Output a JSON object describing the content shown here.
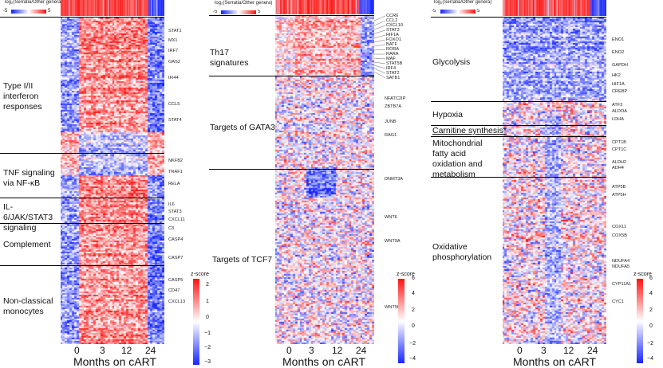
{
  "legend": {
    "title": "log₂(Serratia/Other genera)",
    "min_label": "-5",
    "max_label": "5"
  },
  "x_axis": {
    "ticks": [
      "0",
      "3",
      "12",
      "24"
    ],
    "label": "Months on cART"
  },
  "colorbar": {
    "title": "z-score"
  },
  "panels": [
    {
      "categories": [
        "Type I/II interferon responses",
        "TNF signaling via NF-κB",
        "IL-6/JAK/STAT3 signaling",
        "Complement",
        "Non-classical monocytes"
      ],
      "genes": [
        "STAT1",
        "MX1",
        "IRF7",
        "OAS2",
        "IFI44",
        "CCL5",
        "STAT4",
        "NKFB2",
        "TRAF1",
        "RELA",
        "IL6",
        "STAT3",
        "CXCL11",
        "C3",
        "CASP4",
        "CASP7",
        "CASP5",
        "CD47",
        "CXCL13"
      ],
      "colorbar_ticks": [
        "2",
        "1",
        "0",
        "−1",
        "−2",
        "−3"
      ],
      "colorbar_range": [
        -3,
        2
      ]
    },
    {
      "categories": [
        "Th17 signatures",
        "Targets of GATA3",
        "Targets of TCF7"
      ],
      "genes": [
        "CCR6",
        "CCL2",
        "CXCL10",
        "STAT3",
        "HIF1A",
        "FOXO1",
        "BATF",
        "RORA",
        "RARA",
        "MAF",
        "STAT5B",
        "IRF4",
        "STAT2",
        "SATB1",
        "NFATC2IP",
        "ZBTB7A",
        "JUNB",
        "RAG1",
        "DNMT3A",
        "WNT6",
        "WNT9A",
        "WNT5B"
      ],
      "colorbar_ticks": [
        "6",
        "4",
        "2",
        "0",
        "−2",
        "−4"
      ],
      "colorbar_range": [
        -4,
        6
      ]
    },
    {
      "categories": [
        "Glycolysis",
        "Hypoxia",
        "Carnitine synthesis*",
        "Mitochondrial fatty acid oxidation and metabolism",
        "Oxidative phosphorylation"
      ],
      "genes": [
        "ENO1",
        "ENO2",
        "GAPDH",
        "HK2",
        "HIF1A",
        "CREBP",
        "ATF3",
        "ALDOA",
        "LDHA",
        "CPT1B",
        "CPT1C",
        "ALDH2",
        "ADH4",
        "ATP5B",
        "ATP5H",
        "COX11",
        "COX5B",
        "NDUFA4",
        "NDUFA5",
        "CYP11A1",
        "CYC1"
      ],
      "colorbar_ticks": [
        "6",
        "4",
        "2",
        "0",
        "−2",
        "−4"
      ],
      "colorbar_range": [
        -4,
        6
      ]
    }
  ],
  "chart_data": [
    {
      "type": "heatmap",
      "x": [
        "0",
        "3",
        "12",
        "24"
      ],
      "xlabel": "Months on cART",
      "colorbar_label": "z-score",
      "colorbar_range": [
        -3,
        2
      ],
      "row_groups": [
        "Type I/II interferon responses",
        "TNF signaling via NF-κB",
        "IL-6/JAK/STAT3 signaling",
        "Complement",
        "Non-classical monocytes"
      ],
      "labeled_genes": [
        "STAT1",
        "MX1",
        "IRF7",
        "OAS2",
        "IFI44",
        "CCL5",
        "STAT4",
        "NKFB2",
        "TRAF1",
        "RELA",
        "IL6",
        "STAT3",
        "CXCL11",
        "C3",
        "CASP4",
        "CASP7",
        "CASP5",
        "CD47",
        "CXCL13"
      ]
    },
    {
      "type": "heatmap",
      "x": [
        "0",
        "3",
        "12",
        "24"
      ],
      "xlabel": "Months on cART",
      "colorbar_label": "z-score",
      "colorbar_range": [
        -4,
        6
      ],
      "row_groups": [
        "Th17 signatures",
        "Targets of GATA3",
        "Targets of TCF7"
      ],
      "labeled_genes": [
        "CCR6",
        "CCL2",
        "CXCL10",
        "STAT3",
        "HIF1A",
        "FOXO1",
        "BATF",
        "RORA",
        "RARA",
        "MAF",
        "STAT5B",
        "IRF4",
        "STAT2",
        "SATB1",
        "NFATC2IP",
        "ZBTB7A",
        "JUNB",
        "RAG1",
        "DNMT3A",
        "WNT6",
        "WNT9A",
        "WNT5B"
      ]
    },
    {
      "type": "heatmap",
      "x": [
        "0",
        "3",
        "12",
        "24"
      ],
      "xlabel": "Months on cART",
      "colorbar_label": "z-score",
      "colorbar_range": [
        -4,
        6
      ],
      "row_groups": [
        "Glycolysis",
        "Hypoxia",
        "Carnitine synthesis*",
        "Mitochondrial fatty acid oxidation and metabolism",
        "Oxidative phosphorylation"
      ],
      "labeled_genes": [
        "ENO1",
        "ENO2",
        "GAPDH",
        "HK2",
        "HIF1A",
        "CREBP",
        "ATF3",
        "ALDOA",
        "LDHA",
        "CPT1B",
        "CPT1C",
        "ALDH2",
        "ADH4",
        "ATP5B",
        "ATP5H",
        "COX11",
        "COX5B",
        "NDUFA4",
        "NDUFA5",
        "CYP11A1",
        "CYC1"
      ]
    }
  ]
}
